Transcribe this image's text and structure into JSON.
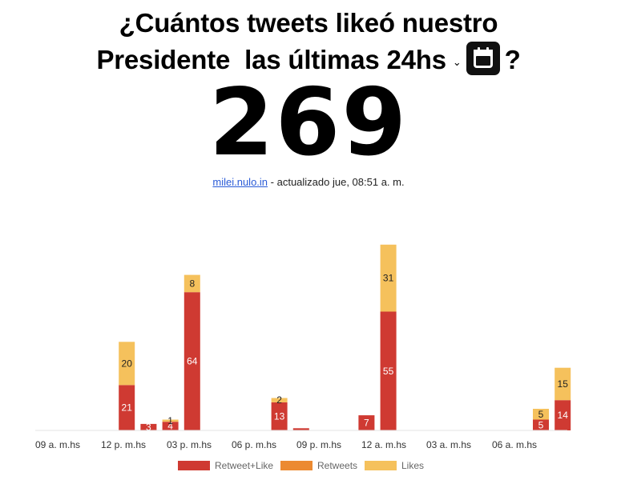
{
  "header": {
    "line1": "¿Cuántos tweets likeó nuestro",
    "line2_prefix": "Presidente",
    "line2_middle": "las últimas 24hs",
    "range_select_icon": "chevron-down-icon",
    "calendar_icon": "calendar-icon",
    "question_mark": "?"
  },
  "total": "269",
  "meta": {
    "link_text": "milei.nulo.in",
    "updated_text": " - actualizado jue, 08:51 a. m."
  },
  "colors": {
    "retweet_like": "#cf3a32",
    "retweets": "#ec8a31",
    "likes": "#f5c15c"
  },
  "chart_data": {
    "type": "bar",
    "stacked": true,
    "title": "",
    "xlabel": "",
    "ylabel": "",
    "x_tick_labels": [
      "09 a. m.hs",
      "12 p. m.hs",
      "03 p. m.hs",
      "06 p. m.hs",
      "09 p. m.hs",
      "12 a. m.hs",
      "03 a. m.hs",
      "06 a. m.hs"
    ],
    "ylim": [
      0,
      90
    ],
    "grid": false,
    "legend_position": "bottom",
    "series": [
      {
        "name": "Retweet+Like",
        "color": "#cf3a32",
        "values": [
          0,
          0,
          0,
          21,
          3,
          4,
          64,
          0,
          0,
          0,
          13,
          1,
          0,
          0,
          7,
          55,
          0,
          0,
          0,
          0,
          0,
          0,
          5,
          14
        ],
        "labels": [
          null,
          null,
          null,
          "21",
          "3",
          "4",
          "64",
          null,
          null,
          null,
          "13",
          null,
          null,
          null,
          "7",
          "55",
          null,
          null,
          null,
          null,
          null,
          null,
          "5",
          "14"
        ]
      },
      {
        "name": "Retweets",
        "color": "#ec8a31",
        "values": [
          0,
          0,
          0,
          0,
          0,
          0,
          0,
          0,
          0,
          0,
          0,
          0,
          0,
          0,
          0,
          0,
          0,
          0,
          0,
          0,
          0,
          0,
          0,
          0
        ],
        "labels": [
          null,
          null,
          null,
          null,
          null,
          null,
          null,
          null,
          null,
          null,
          null,
          null,
          null,
          null,
          null,
          null,
          null,
          null,
          null,
          null,
          null,
          null,
          null,
          null
        ]
      },
      {
        "name": "Likes",
        "color": "#f5c15c",
        "values": [
          0,
          0,
          0,
          20,
          0,
          1,
          8,
          0,
          0,
          0,
          2,
          0,
          0,
          0,
          0,
          31,
          0,
          0,
          0,
          0,
          0,
          0,
          5,
          15
        ],
        "labels": [
          null,
          null,
          null,
          "20",
          null,
          "1",
          "8",
          null,
          null,
          null,
          "2",
          null,
          null,
          null,
          null,
          "31",
          null,
          null,
          null,
          null,
          null,
          null,
          "5",
          "15"
        ]
      }
    ]
  }
}
